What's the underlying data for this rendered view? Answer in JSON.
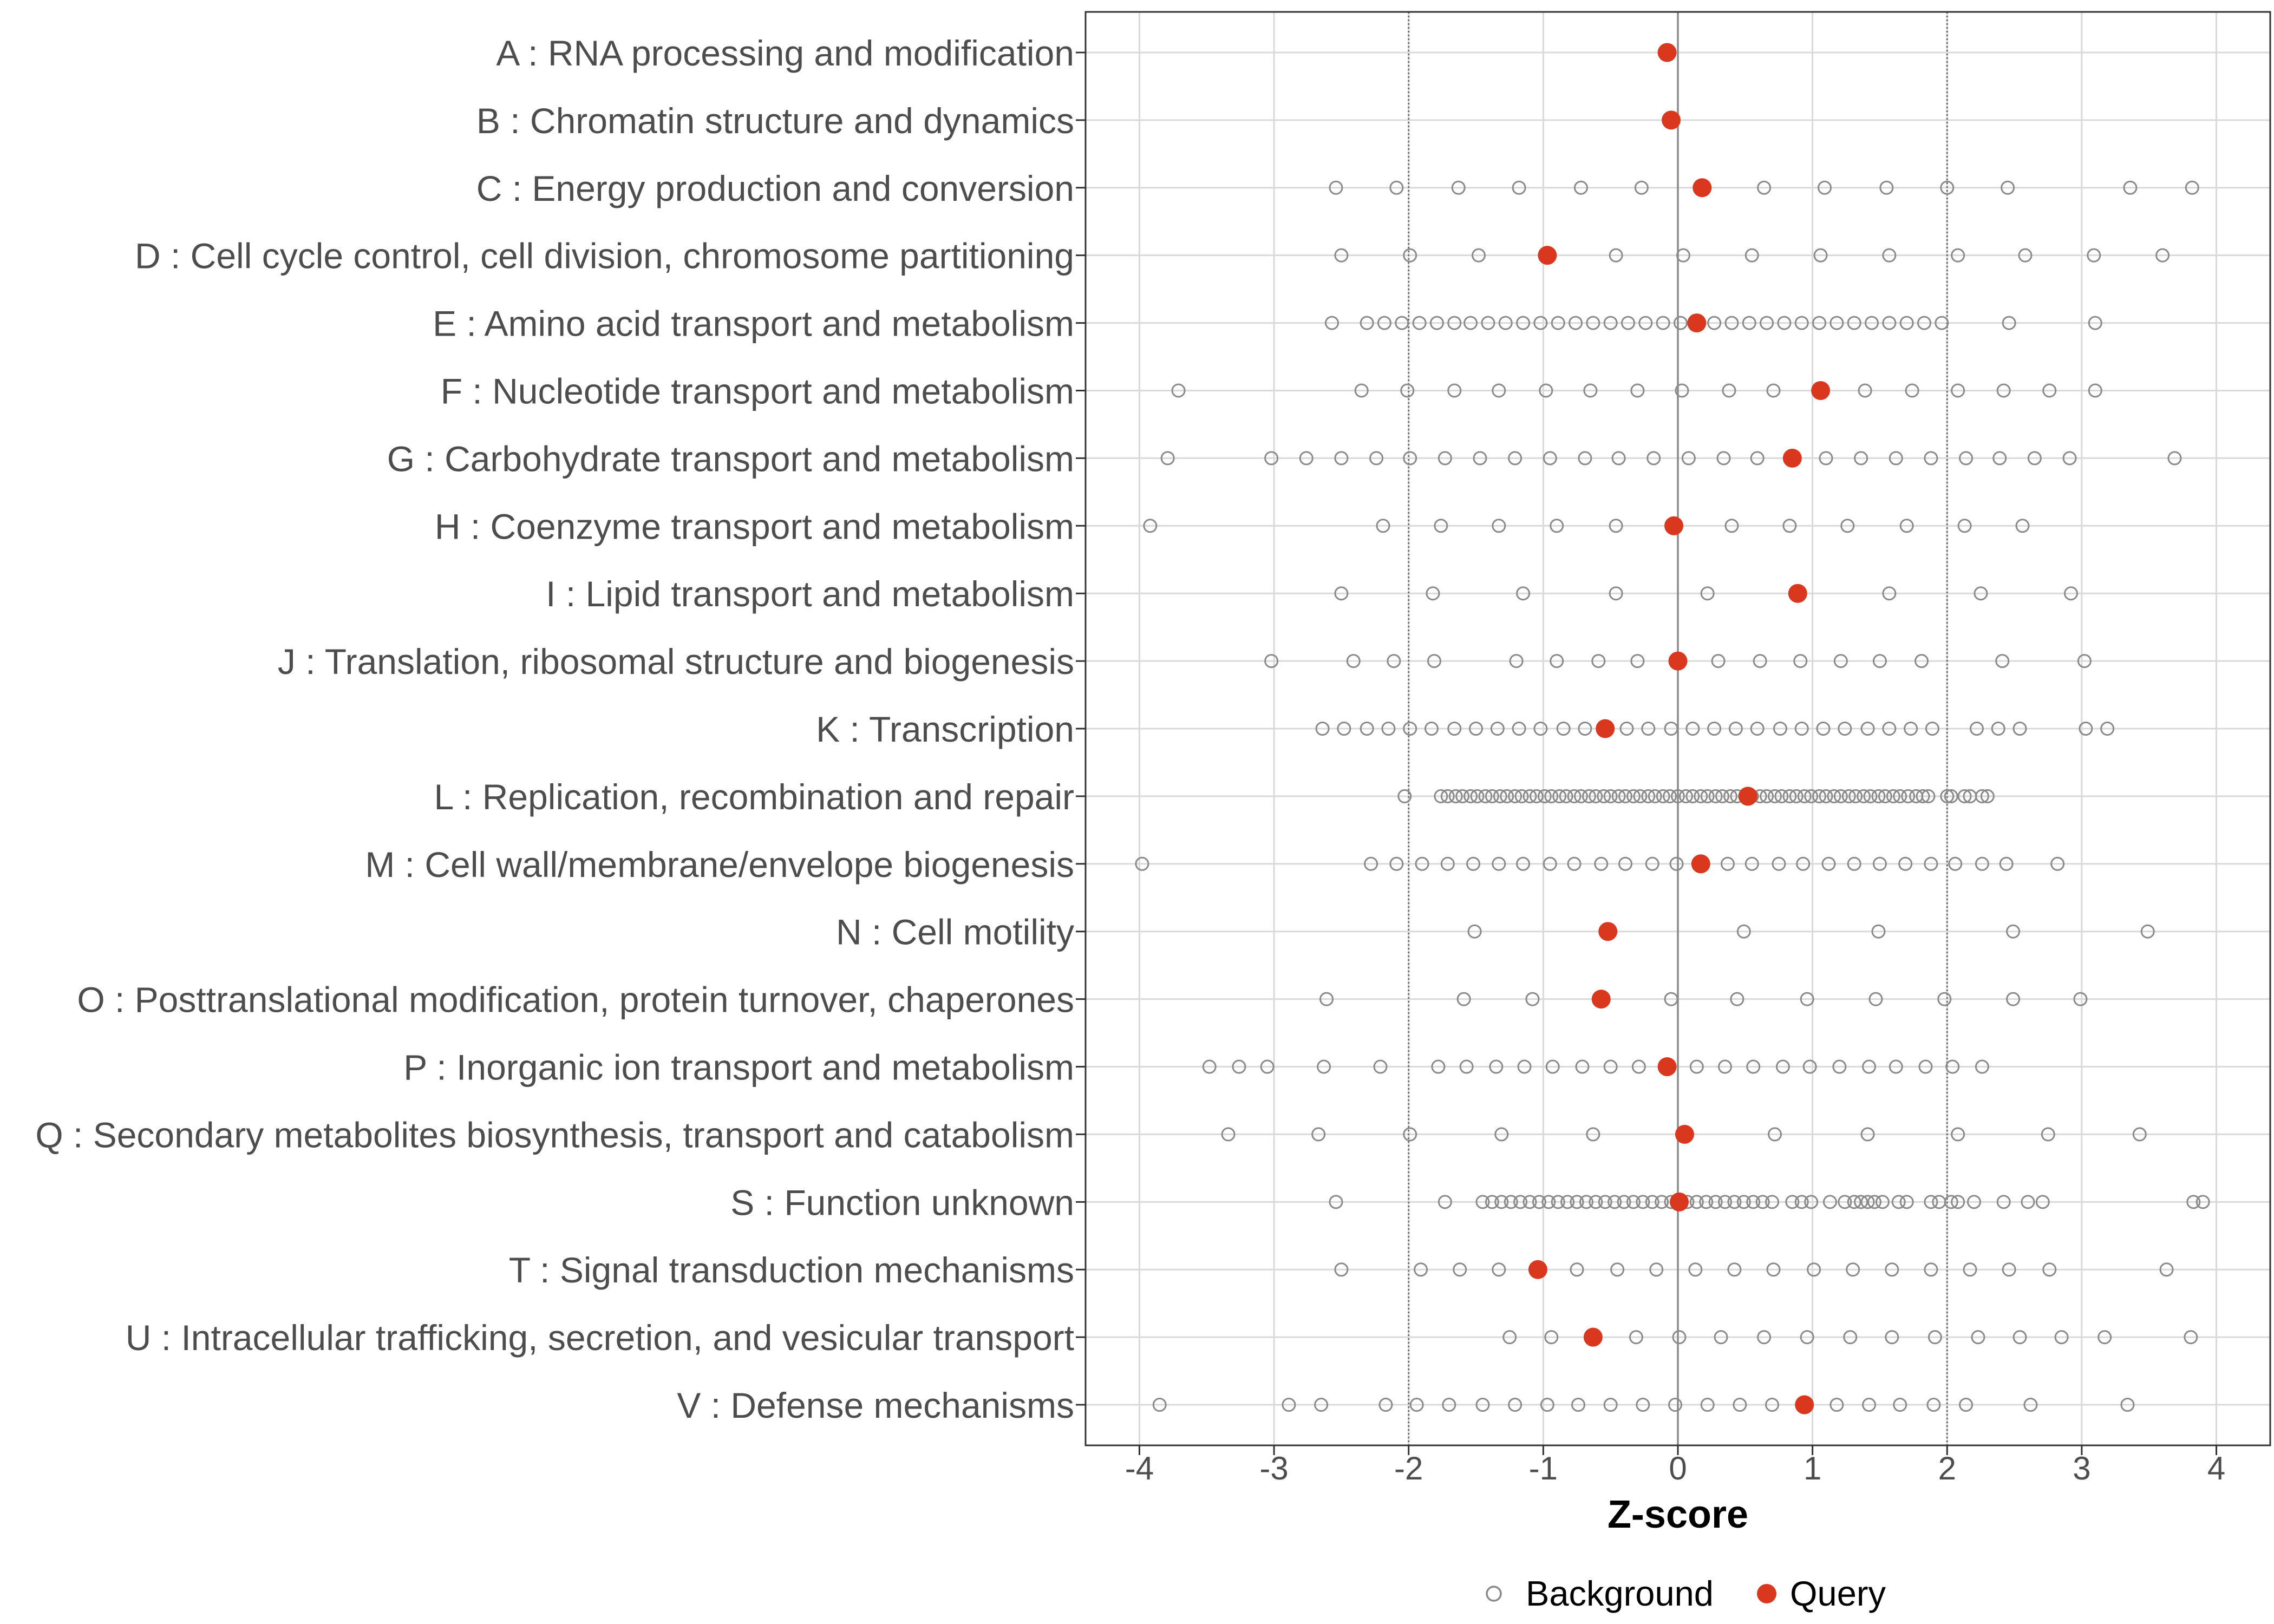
{
  "chart_data": {
    "type": "scatter",
    "xlabel": "Z-score",
    "xlim": [
      -4.4,
      4.4
    ],
    "xticks": [
      -4,
      -3,
      -2,
      -1,
      0,
      1,
      2,
      3,
      4
    ],
    "xtick_labels": [
      "-4",
      "-3",
      "-2",
      "-1",
      "0",
      "1",
      "2",
      "3",
      "4"
    ],
    "grid": true,
    "legend_position": "bottom",
    "reference_lines": {
      "dotted": [
        -2,
        2
      ],
      "solid": [
        0
      ]
    },
    "categories": [
      "A : RNA processing and modification",
      "B : Chromatin structure and dynamics",
      "C : Energy production and conversion",
      "D : Cell cycle control, cell division, chromosome partitioning",
      "E : Amino acid transport and metabolism",
      "F : Nucleotide transport and metabolism",
      "G : Carbohydrate transport and metabolism",
      "H : Coenzyme transport and metabolism",
      "I : Lipid transport and metabolism",
      "J : Translation, ribosomal structure and biogenesis",
      "K : Transcription",
      "L : Replication, recombination and repair",
      "M : Cell wall/membrane/envelope biogenesis",
      "N : Cell motility",
      "O : Posttranslational modification, protein turnover, chaperones",
      "P : Inorganic ion transport and metabolism",
      "Q : Secondary metabolites biosynthesis, transport and catabolism",
      "S : Function unknown",
      "T : Signal transduction mechanisms",
      "U : Intracellular trafficking, secretion, and vesicular transport",
      "V : Defense mechanisms"
    ],
    "series": [
      {
        "name": "Background",
        "color": "#8a8a8a",
        "values": [
          [],
          [],
          [
            -2.54,
            -2.09,
            -1.63,
            -1.18,
            -0.72,
            -0.27,
            0.64,
            1.09,
            1.55,
            2.0,
            2.45,
            3.36,
            3.82
          ],
          [
            -2.5,
            -1.99,
            -1.48,
            -0.46,
            0.04,
            0.55,
            1.06,
            1.57,
            2.08,
            2.58,
            3.09,
            3.6
          ],
          [
            -2.57,
            -2.31,
            -2.18,
            -2.05,
            -1.92,
            -1.79,
            -1.66,
            -1.54,
            -1.41,
            -1.28,
            -1.15,
            -1.02,
            -0.89,
            -0.76,
            -0.63,
            -0.5,
            -0.37,
            -0.24,
            -0.11,
            0.02,
            0.27,
            0.4,
            0.53,
            0.66,
            0.79,
            0.92,
            1.05,
            1.18,
            1.31,
            1.44,
            1.57,
            1.7,
            1.83,
            1.96,
            2.46,
            3.1
          ],
          [
            -3.71,
            -2.35,
            -2.01,
            -1.66,
            -1.33,
            -0.98,
            -0.65,
            -0.3,
            0.03,
            0.38,
            0.71,
            1.39,
            1.74,
            2.08,
            2.42,
            2.76,
            3.1
          ],
          [
            -3.79,
            -3.02,
            -2.76,
            -2.5,
            -2.24,
            -1.99,
            -1.73,
            -1.47,
            -1.21,
            -0.95,
            -0.69,
            -0.44,
            -0.18,
            0.08,
            0.34,
            0.59,
            1.1,
            1.36,
            1.62,
            1.88,
            2.14,
            2.39,
            2.65,
            2.91,
            3.69
          ],
          [
            -3.92,
            -2.19,
            -1.76,
            -1.33,
            -0.9,
            -0.46,
            0.4,
            0.83,
            1.26,
            1.7,
            2.13,
            2.56
          ],
          [
            -2.5,
            -1.82,
            -1.15,
            -0.46,
            0.22,
            1.57,
            2.25,
            2.92
          ],
          [
            -3.02,
            -2.41,
            -2.11,
            -1.81,
            -1.2,
            -0.9,
            -0.59,
            -0.3,
            0.3,
            0.61,
            0.91,
            1.21,
            1.5,
            1.81,
            2.41,
            3.02
          ],
          [
            -2.64,
            -2.48,
            -2.31,
            -2.15,
            -1.99,
            -1.83,
            -1.66,
            -1.5,
            -1.34,
            -1.18,
            -1.02,
            -0.85,
            -0.69,
            -0.38,
            -0.22,
            -0.05,
            0.11,
            0.27,
            0.43,
            0.59,
            0.76,
            0.92,
            1.08,
            1.24,
            1.41,
            1.57,
            1.73,
            1.89,
            2.22,
            2.38,
            2.54,
            3.03,
            3.19
          ],
          [
            -2.03,
            -1.76,
            -1.71,
            -1.65,
            -1.6,
            -1.54,
            -1.49,
            -1.43,
            -1.38,
            -1.32,
            -1.27,
            -1.21,
            -1.16,
            -1.1,
            -1.05,
            -0.99,
            -0.94,
            -0.88,
            -0.83,
            -0.77,
            -0.72,
            -0.66,
            -0.61,
            -0.55,
            -0.5,
            -0.44,
            -0.39,
            -0.33,
            -0.28,
            -0.22,
            -0.17,
            -0.11,
            -0.06,
            0.0,
            0.06,
            0.11,
            0.17,
            0.22,
            0.28,
            0.33,
            0.39,
            0.44,
            0.5,
            0.55,
            0.61,
            0.66,
            0.72,
            0.77,
            0.83,
            0.88,
            0.94,
            0.99,
            1.05,
            1.1,
            1.16,
            1.21,
            1.27,
            1.32,
            1.38,
            1.43,
            1.49,
            1.54,
            1.6,
            1.65,
            1.71,
            1.77,
            1.82,
            1.86,
            2.0,
            2.03,
            2.13,
            2.17,
            2.26,
            2.3
          ],
          [
            -3.98,
            -2.28,
            -2.09,
            -1.9,
            -1.71,
            -1.52,
            -1.33,
            -1.15,
            -0.95,
            -0.77,
            -0.57,
            -0.39,
            -0.19,
            -0.01,
            0.37,
            0.55,
            0.75,
            0.93,
            1.12,
            1.31,
            1.5,
            1.69,
            1.88,
            2.06,
            2.26,
            2.44,
            2.82
          ],
          [
            -1.51,
            0.49,
            1.49,
            2.49,
            3.49
          ],
          [
            -2.61,
            -1.59,
            -1.08,
            -0.05,
            0.44,
            0.96,
            1.47,
            1.98,
            2.49,
            2.99
          ],
          [
            -3.48,
            -3.26,
            -3.05,
            -2.63,
            -2.21,
            -1.78,
            -1.57,
            -1.35,
            -1.14,
            -0.93,
            -0.71,
            -0.5,
            -0.29,
            0.14,
            0.35,
            0.56,
            0.78,
            0.98,
            1.2,
            1.42,
            1.62,
            1.84,
            2.04,
            2.26
          ],
          [
            -3.34,
            -2.67,
            -1.99,
            -1.31,
            -0.63,
            0.72,
            1.41,
            2.08,
            2.75,
            3.43
          ],
          [
            -2.54,
            -1.73,
            -1.45,
            -1.38,
            -1.31,
            -1.24,
            -1.17,
            -1.1,
            -1.03,
            -0.96,
            -0.89,
            -0.82,
            -0.75,
            -0.68,
            -0.61,
            -0.54,
            -0.47,
            -0.4,
            -0.33,
            -0.26,
            -0.19,
            -0.12,
            -0.05,
            0.07,
            0.14,
            0.21,
            0.28,
            0.35,
            0.42,
            0.49,
            0.56,
            0.63,
            0.7,
            0.85,
            0.92,
            0.99,
            1.13,
            1.24,
            1.31,
            1.36,
            1.41,
            1.46,
            1.52,
            1.64,
            1.7,
            1.88,
            1.94,
            2.03,
            2.08,
            2.2,
            2.42,
            2.6,
            2.71,
            3.83,
            3.9
          ],
          [
            -2.5,
            -1.91,
            -1.62,
            -1.33,
            -0.75,
            -0.45,
            -0.16,
            0.13,
            0.42,
            0.71,
            1.01,
            1.3,
            1.59,
            1.88,
            2.17,
            2.46,
            2.76,
            3.63
          ],
          [
            -1.25,
            -0.94,
            -0.31,
            0.01,
            0.32,
            0.64,
            0.96,
            1.28,
            1.59,
            1.91,
            2.23,
            2.54,
            2.85,
            3.17,
            3.81
          ],
          [
            -3.85,
            -2.89,
            -2.65,
            -2.17,
            -1.94,
            -1.7,
            -1.45,
            -1.21,
            -0.97,
            -0.74,
            -0.5,
            -0.26,
            -0.02,
            0.22,
            0.46,
            0.7,
            1.18,
            1.42,
            1.65,
            1.9,
            2.14,
            2.62,
            3.34
          ]
        ]
      },
      {
        "name": "Query",
        "color": "#d9381e",
        "values": [
          -0.08,
          -0.05,
          0.18,
          -0.97,
          0.14,
          1.06,
          0.85,
          -0.03,
          0.89,
          0.0,
          -0.54,
          0.52,
          0.17,
          -0.52,
          -0.57,
          -0.08,
          0.05,
          0.01,
          -1.04,
          -0.63,
          0.94
        ]
      }
    ]
  }
}
